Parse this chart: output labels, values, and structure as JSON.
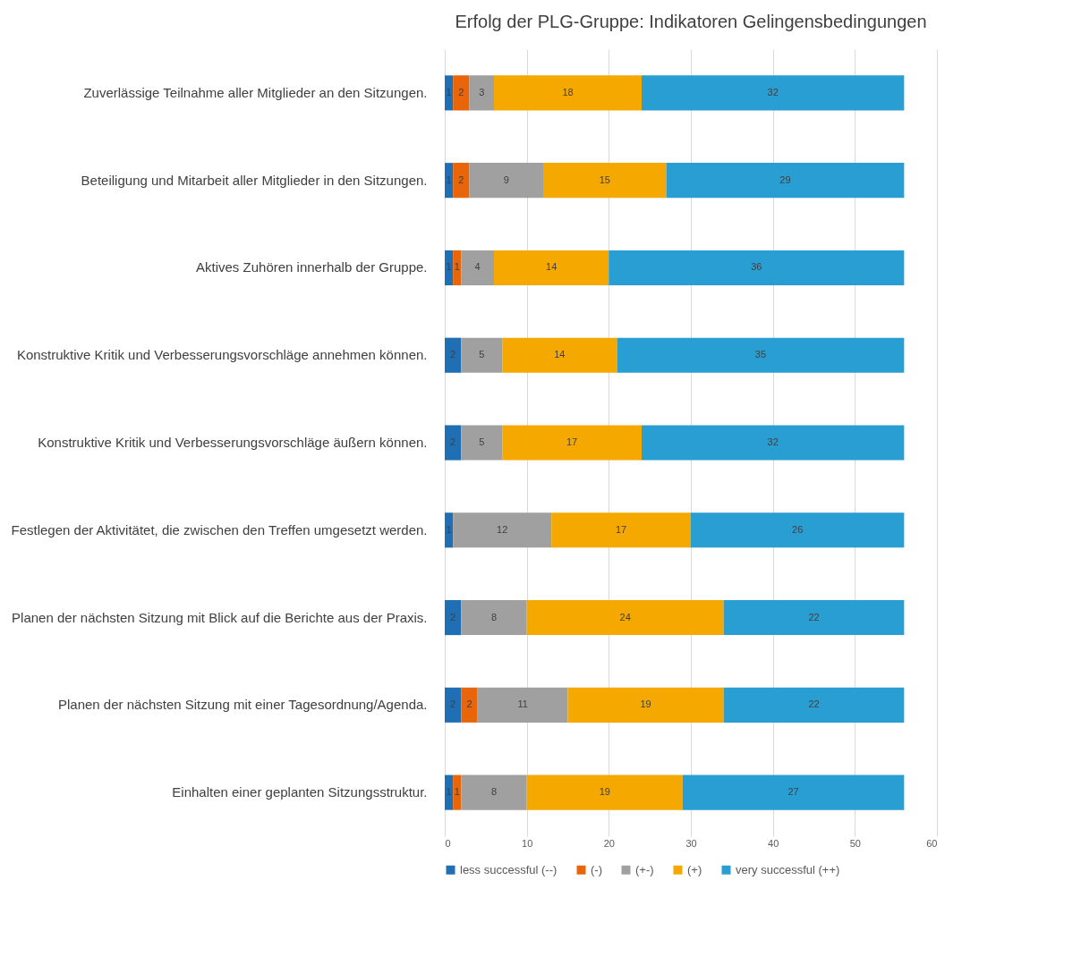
{
  "chart_data": {
    "type": "bar",
    "orientation": "horizontal",
    "stacked": true,
    "title": "Erfolg der PLG-Gruppe: Indikatoren Gelingensbedingungen",
    "categories": [
      "Zuverlässige Teilnahme aller Mitglieder an den Sitzungen.",
      "Beteiligung und Mitarbeit aller Mitglieder in den Sitzungen.",
      "Aktives Zuhören innerhalb der Gruppe.",
      "Konstruktive Kritik und Verbesserungsvorschläge annehmen können.",
      "Konstruktive Kritik und Verbesserungsvorschläge äußern können.",
      "Festlegen der Aktivitätet, die zwischen den Treffen umgesetzt werden.",
      "Planen der nächsten Sitzung mit Blick auf die Berichte aus der Praxis.",
      "Planen der nächsten Sitzung mit einer Tagesordnung/Agenda.",
      "Einhalten einer geplanten Sitzungsstruktur."
    ],
    "series": [
      {
        "name": "less successful (--)",
        "color": "#1f6fb5",
        "values": [
          1,
          1,
          1,
          2,
          2,
          1,
          2,
          2,
          1
        ]
      },
      {
        "name": "(-)",
        "color": "#e8650a",
        "values": [
          2,
          2,
          1,
          null,
          null,
          null,
          null,
          2,
          1
        ]
      },
      {
        "name": "(+-)",
        "color": "#a0a0a0",
        "values": [
          3,
          9,
          4,
          5,
          5,
          12,
          8,
          11,
          8
        ]
      },
      {
        "name": "(+)",
        "color": "#f5a800",
        "values": [
          18,
          15,
          14,
          14,
          17,
          17,
          24,
          19,
          19
        ]
      },
      {
        "name": "very successful (++)",
        "color": "#289ed2",
        "values": [
          32,
          29,
          36,
          35,
          32,
          26,
          22,
          22,
          27
        ]
      }
    ],
    "xlim": [
      0,
      60
    ],
    "xticks": [
      0,
      10,
      20,
      30,
      40,
      50,
      60
    ],
    "grid": "x",
    "legend": "bottom",
    "data_labels": true
  }
}
